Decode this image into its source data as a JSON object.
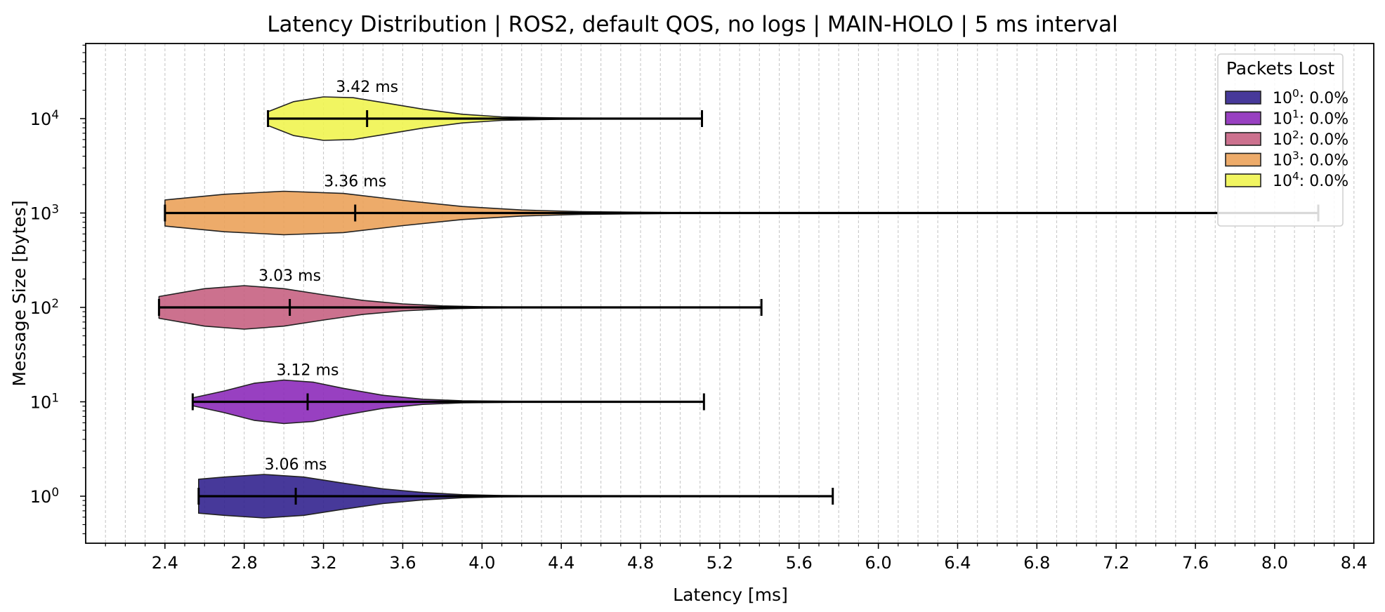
{
  "chart_data": {
    "type": "violin",
    "orientation": "horizontal",
    "title": "Latency Distribution | ROS2, default QOS, no logs | MAIN-HOLO | 5 ms interval",
    "xlabel": "Latency [ms]",
    "ylabel": "Message Size [bytes]",
    "xlim": [
      2.0,
      8.5
    ],
    "x_ticks": [
      "2.4",
      "2.8",
      "3.2",
      "3.6",
      "4.0",
      "4.4",
      "4.8",
      "5.2",
      "5.6",
      "6.0",
      "6.4",
      "6.8",
      "7.2",
      "7.6",
      "8.0",
      "8.4"
    ],
    "y_scale": "log",
    "y_ticks": [
      {
        "base": "10",
        "exp": "0"
      },
      {
        "base": "10",
        "exp": "1"
      },
      {
        "base": "10",
        "exp": "2"
      },
      {
        "base": "10",
        "exp": "3"
      },
      {
        "base": "10",
        "exp": "4"
      }
    ],
    "grid": "x-major-and-minor",
    "legend": {
      "title": "Packets Lost",
      "placement": "top-right",
      "entries": [
        {
          "base": "10",
          "exp": "0",
          "value": ": 0.0%",
          "color": "#2d1e8c"
        },
        {
          "base": "10",
          "exp": "1",
          "value": ": 0.0%",
          "color": "#8a26b8"
        },
        {
          "base": "10",
          "exp": "2",
          "value": ": 0.0%",
          "color": "#c55d7e"
        },
        {
          "base": "10",
          "exp": "3",
          "value": ": 0.0%",
          "color": "#eb9f55"
        },
        {
          "base": "10",
          "exp": "4",
          "value": ": 0.0%",
          "color": "#eff44b"
        }
      ]
    },
    "series": [
      {
        "message_size": 1,
        "min": 2.57,
        "max": 5.77,
        "median": 3.06,
        "median_label": "3.06 ms",
        "color": "#2d1e8c",
        "profile": [
          [
            2.57,
            0.78
          ],
          [
            2.7,
            0.88
          ],
          [
            2.9,
            1.0
          ],
          [
            3.1,
            0.88
          ],
          [
            3.3,
            0.6
          ],
          [
            3.5,
            0.34
          ],
          [
            3.7,
            0.17
          ],
          [
            3.9,
            0.07
          ],
          [
            4.1,
            0.03
          ],
          [
            4.4,
            0.012
          ],
          [
            5.0,
            0.006
          ],
          [
            5.77,
            0.004
          ]
        ]
      },
      {
        "message_size": 10,
        "min": 2.54,
        "max": 5.12,
        "median": 3.12,
        "median_label": "3.12 ms",
        "color": "#8a26b8",
        "profile": [
          [
            2.54,
            0.18
          ],
          [
            2.7,
            0.5
          ],
          [
            2.85,
            0.85
          ],
          [
            3.0,
            1.0
          ],
          [
            3.15,
            0.9
          ],
          [
            3.3,
            0.62
          ],
          [
            3.5,
            0.3
          ],
          [
            3.7,
            0.12
          ],
          [
            3.9,
            0.05
          ],
          [
            4.2,
            0.02
          ],
          [
            4.6,
            0.008
          ],
          [
            5.12,
            0.005
          ]
        ]
      },
      {
        "message_size": 100,
        "min": 2.37,
        "max": 5.41,
        "median": 3.03,
        "median_label": "3.03 ms",
        "color": "#c55d7e",
        "profile": [
          [
            2.37,
            0.5
          ],
          [
            2.6,
            0.86
          ],
          [
            2.8,
            1.0
          ],
          [
            3.0,
            0.86
          ],
          [
            3.2,
            0.58
          ],
          [
            3.4,
            0.32
          ],
          [
            3.6,
            0.16
          ],
          [
            3.8,
            0.07
          ],
          [
            4.0,
            0.03
          ],
          [
            4.4,
            0.01
          ],
          [
            5.0,
            0.005
          ],
          [
            5.41,
            0.004
          ]
        ]
      },
      {
        "message_size": 1000,
        "min": 2.4,
        "max": 8.22,
        "median": 3.36,
        "median_label": "3.36 ms",
        "color": "#eb9f55",
        "profile": [
          [
            2.4,
            0.6
          ],
          [
            2.7,
            0.86
          ],
          [
            3.0,
            1.0
          ],
          [
            3.3,
            0.9
          ],
          [
            3.6,
            0.58
          ],
          [
            3.9,
            0.3
          ],
          [
            4.2,
            0.14
          ],
          [
            4.5,
            0.06
          ],
          [
            5.0,
            0.02
          ],
          [
            6.0,
            0.01
          ],
          [
            7.0,
            0.006
          ],
          [
            8.22,
            0.004
          ]
        ]
      },
      {
        "message_size": 10000,
        "min": 2.92,
        "max": 5.11,
        "median": 3.42,
        "median_label": "3.42 ms",
        "color": "#eff44b",
        "profile": [
          [
            2.92,
            0.32
          ],
          [
            3.05,
            0.78
          ],
          [
            3.2,
            1.0
          ],
          [
            3.35,
            0.96
          ],
          [
            3.5,
            0.74
          ],
          [
            3.7,
            0.44
          ],
          [
            3.9,
            0.2
          ],
          [
            4.1,
            0.08
          ],
          [
            4.4,
            0.03
          ],
          [
            4.8,
            0.01
          ],
          [
            5.11,
            0.005
          ]
        ]
      }
    ]
  }
}
